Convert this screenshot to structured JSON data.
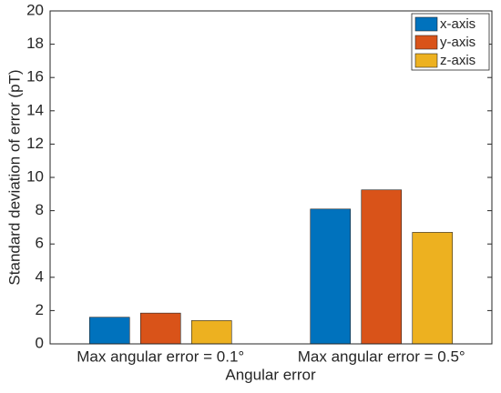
{
  "chart_data": {
    "type": "bar",
    "x_label": "Angular error",
    "y_label": "Standard deviation of error (pT)",
    "categories": [
      "Max angular error = 0.1°",
      "Max angular error = 0.5°"
    ],
    "series": [
      {
        "name": "x-axis",
        "color": "#0072BD",
        "values": [
          1.6,
          8.1
        ]
      },
      {
        "name": "y-axis",
        "color": "#D95319",
        "values": [
          1.85,
          9.25
        ]
      },
      {
        "name": "z-axis",
        "color": "#EDB120",
        "values": [
          1.4,
          6.7
        ]
      }
    ],
    "ylim": [
      0,
      20
    ],
    "yticks": [
      0,
      2,
      4,
      6,
      8,
      10,
      12,
      14,
      16,
      18,
      20
    ],
    "legend": "top-right"
  }
}
